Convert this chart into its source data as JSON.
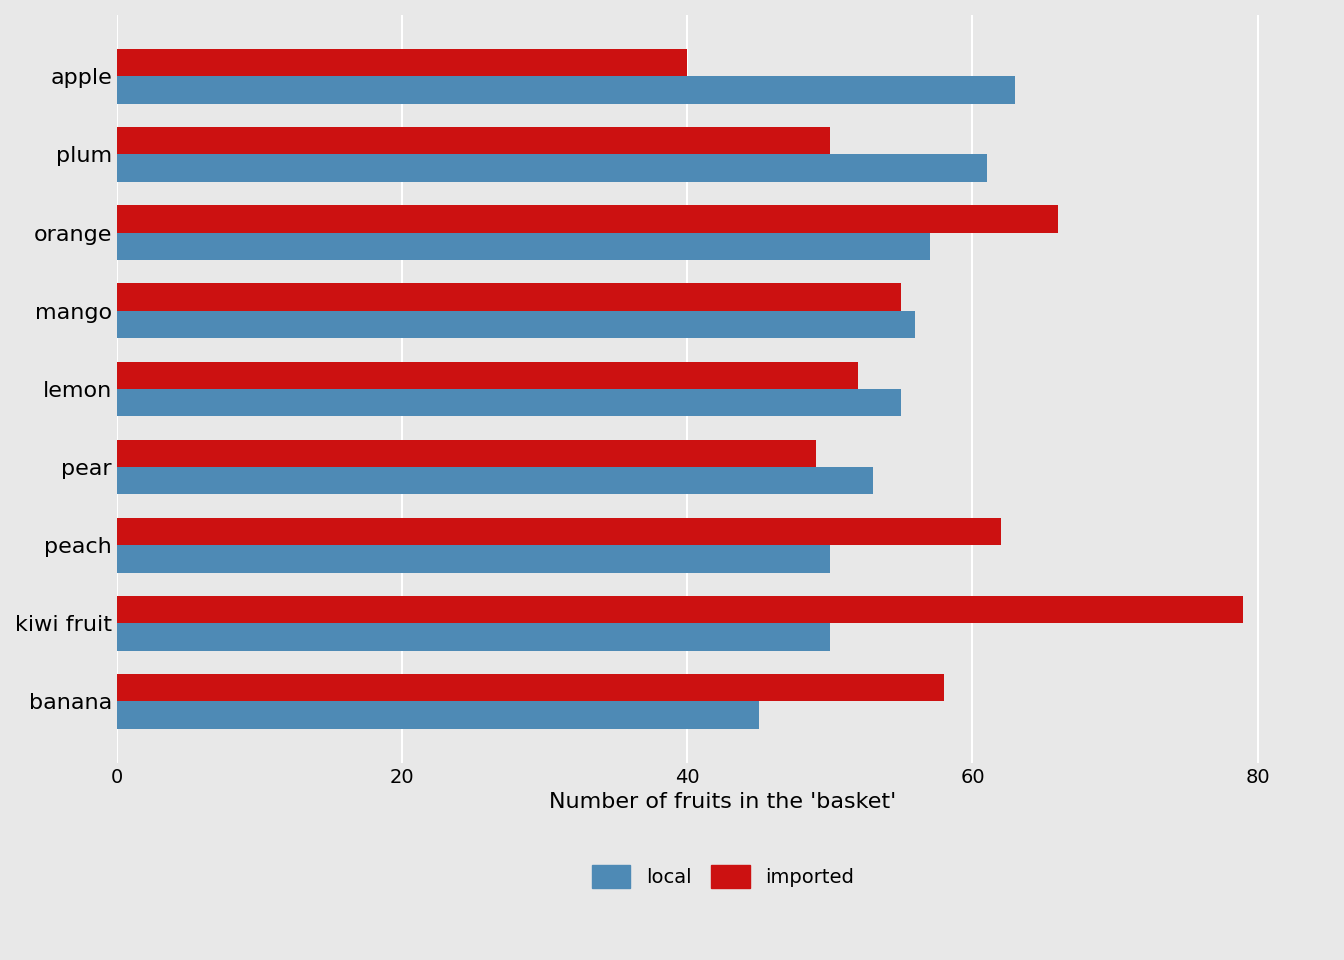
{
  "categories": [
    "apple",
    "plum",
    "orange",
    "mango",
    "lemon",
    "pear",
    "peach",
    "kiwi fruit",
    "banana"
  ],
  "local": [
    63,
    61,
    57,
    56,
    55,
    53,
    50,
    50,
    45
  ],
  "imported": [
    40,
    50,
    66,
    55,
    52,
    49,
    62,
    79,
    58
  ],
  "local_color": "#4e8ab5",
  "imported_color": "#cc1111",
  "xlabel": "Number of fruits in the 'basket'",
  "background_color": "#e8e8e8",
  "plot_bg_color": "#e8e8e8",
  "xlim": [
    0,
    85
  ],
  "xticks": [
    0,
    20,
    40,
    60,
    80
  ],
  "bar_height": 0.35,
  "legend_labels": [
    "local",
    "imported"
  ],
  "xlabel_fontsize": 16,
  "tick_fontsize": 14,
  "category_fontsize": 16
}
